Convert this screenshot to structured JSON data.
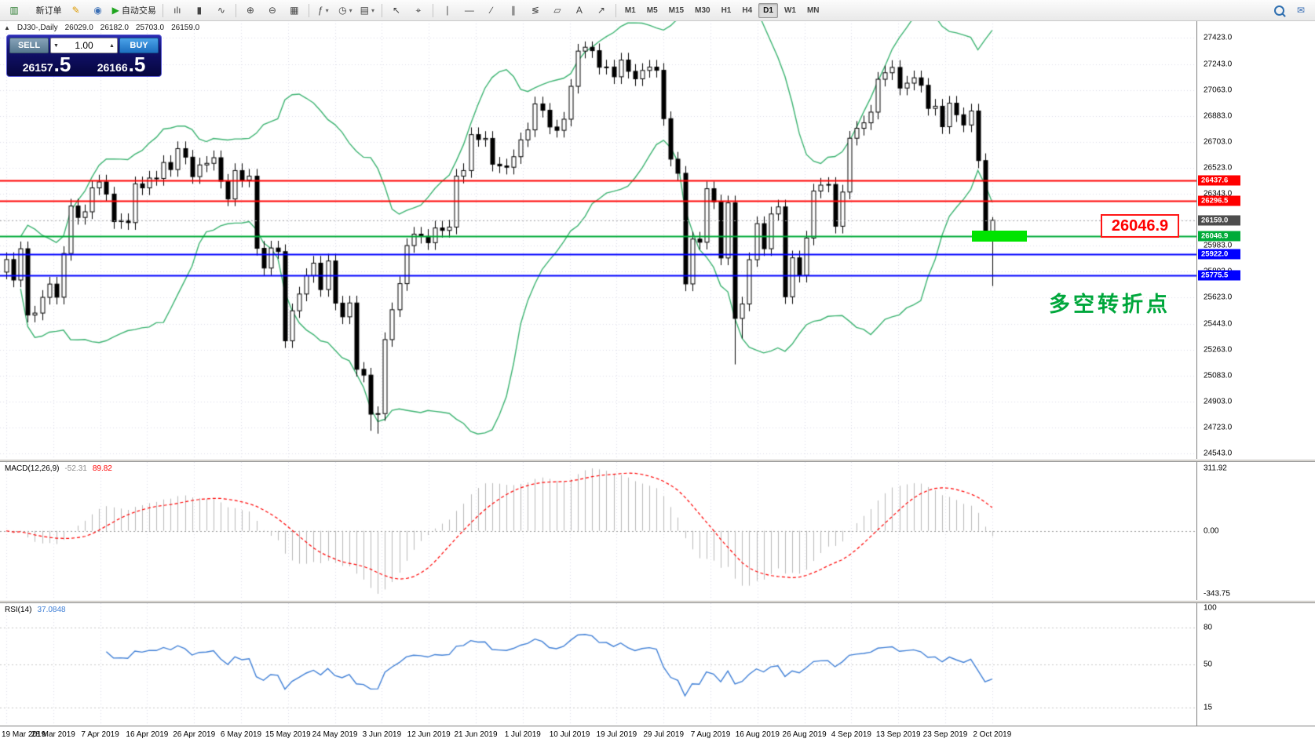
{
  "toolbar": {
    "groups": [
      {
        "items": [
          {
            "name": "chart-window-icon-button",
            "glyph": "▥",
            "color": "#2e7d32"
          },
          {
            "name": "new-order-button",
            "glyph": "▯",
            "color": "#f2f2f2",
            "label": "新订单"
          },
          {
            "name": "metaeditor-button",
            "glyph": "✎",
            "color": "#dd9a00"
          },
          {
            "name": "market-watch-button",
            "glyph": "◉",
            "color": "#3b6fb5"
          },
          {
            "name": "autotrading-button",
            "glyph": "▶",
            "color": "#1fa51f",
            "label": "自动交易"
          }
        ]
      },
      {
        "items": [
          {
            "name": "bar-chart-button",
            "glyph": "ılı"
          },
          {
            "name": "candlestick-chart-button",
            "glyph": "▮"
          },
          {
            "name": "line-chart-button",
            "glyph": "∿"
          }
        ]
      },
      {
        "items": [
          {
            "name": "zoom-in-button",
            "glyph": "⊕"
          },
          {
            "name": "zoom-out-button",
            "glyph": "⊖"
          },
          {
            "name": "tile-windows-button",
            "glyph": "▦"
          }
        ]
      },
      {
        "items": [
          {
            "name": "indicators-combo",
            "glyph": "ƒ",
            "dropdown": true
          },
          {
            "name": "periods-combo",
            "glyph": "◷",
            "dropdown": true
          },
          {
            "name": "templates-combo",
            "glyph": "▤",
            "dropdown": true
          }
        ]
      },
      {
        "items": [
          {
            "name": "cursor-button",
            "glyph": "↖"
          },
          {
            "name": "crosshair-button",
            "glyph": "⌖"
          }
        ]
      },
      {
        "items": [
          {
            "name": "vertical-line-button",
            "glyph": "∣"
          },
          {
            "name": "horizontal-line-button",
            "glyph": "―"
          },
          {
            "name": "trendline-button",
            "glyph": "∕"
          },
          {
            "name": "channel-button",
            "glyph": "∥"
          },
          {
            "name": "fibonacci-button",
            "glyph": "≶"
          },
          {
            "name": "shapes-button",
            "glyph": "▱"
          },
          {
            "name": "text-button",
            "glyph": "A"
          },
          {
            "name": "arrow-button",
            "glyph": "↗"
          }
        ]
      }
    ],
    "timeframes": [
      {
        "label": "M1"
      },
      {
        "label": "M5"
      },
      {
        "label": "M15"
      },
      {
        "label": "M30"
      },
      {
        "label": "H1"
      },
      {
        "label": "H4"
      },
      {
        "label": "D1",
        "active": true
      },
      {
        "label": "W1"
      },
      {
        "label": "MN"
      }
    ],
    "right_items": [
      {
        "name": "search-button",
        "css": "magnifier"
      },
      {
        "name": "message-button",
        "glyph": "✉"
      }
    ]
  },
  "chart": {
    "title": "DJ30-,Daily"
  },
  "one_click": {
    "sell_label": "SELL",
    "buy_label": "BUY",
    "volume": "1.00",
    "sell_price_base": "26157",
    "sell_price_frac": ".5",
    "buy_price_base": "26166",
    "buy_price_frac": ".5"
  },
  "price_axis": {
    "ticks": [
      "27423.0",
      "27243.0",
      "27063.0",
      "26883.0",
      "26703.0",
      "26523.0",
      "26343.0",
      "26163.0",
      "25983.0",
      "25803.0",
      "25623.0",
      "25443.0",
      "25263.0",
      "25083.0",
      "24903.0",
      "24723.0",
      "24543.0"
    ]
  },
  "lines": [
    {
      "name": "resistance-line-1",
      "label": "26437.6",
      "price": 26437.6,
      "color": "#ff0000",
      "width": 2
    },
    {
      "name": "resistance-line-2",
      "label": "26296.5",
      "price": 26296.5,
      "color": "#ff0000",
      "width": 2
    },
    {
      "name": "last-price-line",
      "label": "26159.0",
      "price": 26159.0,
      "color": "#aaaaaa",
      "style": "dot",
      "width": 1,
      "tag_bg": "#4d4d4d"
    },
    {
      "name": "support-line-green",
      "label": "26046.9",
      "price": 26046.9,
      "color": "#00ab38",
      "width": 2
    },
    {
      "name": "support-line-blue-1",
      "label": "25922.0",
      "price": 25922.0,
      "color": "#0000ff",
      "width": 2
    },
    {
      "name": "support-line-blue-2",
      "label": "25775.5",
      "price": 25775.5,
      "color": "#0000ff",
      "width": 2
    }
  ],
  "annotations": {
    "callout_price": "26046.9",
    "cn_text": "多空转折点",
    "highlight_color": "#00e400"
  },
  "macd": {
    "label": "MACD(12,26,9)",
    "value_main": "-52.31",
    "value_signal": "89.82",
    "axis": [
      "311.92",
      "0.00",
      "-343.75"
    ]
  },
  "rsi": {
    "label": "RSI(14)",
    "value": "37.0848",
    "axis": [
      100,
      80,
      50,
      15
    ],
    "levels": [
      80,
      50,
      15
    ]
  },
  "time_axis": {
    "labels": [
      "19 Mar 2019",
      "28 Mar 2019",
      "7 Apr 2019",
      "16 Apr 2019",
      "26 Apr 2019",
      "6 May 2019",
      "15 May 2019",
      "24 May 2019",
      "3 Jun 2019",
      "12 Jun 2019",
      "21 Jun 2019",
      "1 Jul 2019",
      "10 Jul 2019",
      "19 Jul 2019",
      "29 Jul 2019",
      "7 Aug 2019",
      "16 Aug 2019",
      "26 Aug 2019",
      "4 Sep 2019",
      "13 Sep 2019",
      "23 Sep 2019",
      "2 Oct 2019"
    ]
  },
  "colors": {
    "grid": "#dcdce8",
    "bollinger": "#3cb371",
    "candle_border": "#000000",
    "candle_up": "#ffffff",
    "candle_down": "#000000",
    "macd_histogram": "#b8b8b8",
    "macd_signal": "#ff0000",
    "macd_zero": "#999999",
    "rsi_line": "#3f7fd6",
    "rsi_level": "#c8c8c8"
  },
  "chart_data": {
    "type": "candlestick",
    "symbol": "DJ30",
    "timeframe": "Daily",
    "ohlc_display": {
      "open": "26029.0",
      "high": "26182.0",
      "low": "25703.0",
      "close": "26159.0"
    },
    "indicators": [
      "Bollinger Bands (green)",
      "MACD(12,26,9)",
      "RSI(14)"
    ],
    "ylim": [
      24505,
      27545
    ],
    "candles": [
      [
        25800,
        25937,
        25750,
        25887
      ],
      [
        25887,
        25937,
        25695,
        25745
      ],
      [
        25745,
        26012,
        25695,
        25962
      ],
      [
        25962,
        26012,
        25452,
        25502
      ],
      [
        25502,
        25566,
        25452,
        25516
      ],
      [
        25516,
        25675,
        25466,
        25625
      ],
      [
        25625,
        25767,
        25575,
        25717
      ],
      [
        25717,
        25767,
        25576,
        25626
      ],
      [
        25626,
        25979,
        25576,
        25929
      ],
      [
        25929,
        26308,
        25879,
        26258
      ],
      [
        26258,
        26308,
        26129,
        26179
      ],
      [
        26179,
        26268,
        26129,
        26218
      ],
      [
        26218,
        26434,
        26168,
        26384
      ],
      [
        26384,
        26475,
        26334,
        26425
      ],
      [
        26425,
        26475,
        26291,
        26341
      ],
      [
        26341,
        26391,
        26100,
        26150
      ],
      [
        26150,
        26207,
        26100,
        26157
      ],
      [
        26157,
        26207,
        26093,
        26143
      ],
      [
        26143,
        26462,
        26093,
        26412
      ],
      [
        26412,
        26462,
        26334,
        26384
      ],
      [
        26384,
        26502,
        26334,
        26452
      ],
      [
        26452,
        26502,
        26399,
        26449
      ],
      [
        26449,
        26610,
        26399,
        26560
      ],
      [
        26560,
        26610,
        26461,
        26511
      ],
      [
        26511,
        26706,
        26461,
        26656
      ],
      [
        26656,
        26706,
        26547,
        26597
      ],
      [
        26597,
        26647,
        26412,
        26462
      ],
      [
        26462,
        26593,
        26412,
        26543
      ],
      [
        26543,
        26604,
        26493,
        26554
      ],
      [
        26554,
        26643,
        26504,
        26593
      ],
      [
        26593,
        26643,
        26380,
        26430
      ],
      [
        26430,
        26480,
        26257,
        26307
      ],
      [
        26307,
        26554,
        26257,
        26504
      ],
      [
        26504,
        26554,
        26388,
        26438
      ],
      [
        26438,
        26515,
        26388,
        26465
      ],
      [
        26465,
        26515,
        25915,
        25965
      ],
      [
        25965,
        26015,
        25778,
        25828
      ],
      [
        25828,
        26017,
        25778,
        25967
      ],
      [
        25967,
        26017,
        25892,
        25942
      ],
      [
        25942,
        25992,
        25274,
        25324
      ],
      [
        25324,
        25582,
        25274,
        25532
      ],
      [
        25532,
        25698,
        25482,
        25648
      ],
      [
        25648,
        25826,
        25598,
        25776
      ],
      [
        25776,
        25912,
        25726,
        25862
      ],
      [
        25862,
        25912,
        25629,
        25679
      ],
      [
        25679,
        25927,
        25629,
        25877
      ],
      [
        25877,
        25927,
        25535,
        25585
      ],
      [
        25585,
        25635,
        25440,
        25490
      ],
      [
        25490,
        25636,
        25440,
        25586
      ],
      [
        25586,
        25636,
        25076,
        25126
      ],
      [
        25126,
        25176,
        25036,
        25086
      ],
      [
        25086,
        25136,
        24700,
        24815
      ],
      [
        24815,
        24869,
        24680,
        24819
      ],
      [
        24819,
        25382,
        24769,
        25332
      ],
      [
        25332,
        25589,
        25282,
        25539
      ],
      [
        25539,
        25770,
        25489,
        25720
      ],
      [
        25720,
        26034,
        25670,
        25984
      ],
      [
        25984,
        26113,
        25934,
        26063
      ],
      [
        26063,
        26113,
        25998,
        26048
      ],
      [
        26048,
        26098,
        25954,
        26004
      ],
      [
        26004,
        26156,
        25954,
        26106
      ],
      [
        26106,
        26156,
        26039,
        26089
      ],
      [
        26089,
        26162,
        26039,
        26112
      ],
      [
        26112,
        26515,
        26062,
        26465
      ],
      [
        26465,
        26554,
        26415,
        26504
      ],
      [
        26504,
        26803,
        26454,
        26753
      ],
      [
        26753,
        26803,
        26669,
        26719
      ],
      [
        26719,
        26777,
        26669,
        26727
      ],
      [
        26727,
        26777,
        26498,
        26548
      ],
      [
        26548,
        26598,
        26486,
        26536
      ],
      [
        26536,
        26586,
        26477,
        26527
      ],
      [
        26527,
        26650,
        26477,
        26600
      ],
      [
        26600,
        26767,
        26550,
        26717
      ],
      [
        26717,
        26836,
        26667,
        26786
      ],
      [
        26786,
        27016,
        26736,
        26966
      ],
      [
        26966,
        27016,
        26872,
        26922
      ],
      [
        26922,
        26972,
        26756,
        26806
      ],
      [
        26806,
        26856,
        26733,
        26783
      ],
      [
        26783,
        26910,
        26733,
        26860
      ],
      [
        26860,
        27138,
        26810,
        27088
      ],
      [
        27088,
        27382,
        27038,
        27332
      ],
      [
        27332,
        27399,
        27282,
        27359
      ],
      [
        27359,
        27399,
        27285,
        27335
      ],
      [
        27335,
        27385,
        27170,
        27220
      ],
      [
        27220,
        27272,
        27170,
        27222
      ],
      [
        27222,
        27272,
        27104,
        27154
      ],
      [
        27154,
        27320,
        27104,
        27270
      ],
      [
        27270,
        27320,
        27142,
        27192
      ],
      [
        27192,
        27242,
        27090,
        27140
      ],
      [
        27140,
        27248,
        27090,
        27198
      ],
      [
        27198,
        27271,
        27148,
        27221
      ],
      [
        27221,
        27271,
        27149,
        27199
      ],
      [
        27199,
        27249,
        26814,
        26864
      ],
      [
        26864,
        26914,
        26533,
        26583
      ],
      [
        26583,
        26633,
        26435,
        26485
      ],
      [
        26485,
        26535,
        25668,
        25718
      ],
      [
        25718,
        26079,
        25668,
        26029
      ],
      [
        26029,
        26079,
        25957,
        26007
      ],
      [
        26007,
        26428,
        25957,
        26378
      ],
      [
        26378,
        26428,
        26237,
        26287
      ],
      [
        26287,
        26337,
        25848,
        25898
      ],
      [
        25898,
        26330,
        25848,
        26280
      ],
      [
        26280,
        26330,
        25160,
        25479
      ],
      [
        25479,
        25629,
        25340,
        25579
      ],
      [
        25579,
        25936,
        25529,
        25886
      ],
      [
        25886,
        26186,
        25836,
        26136
      ],
      [
        26136,
        26186,
        25912,
        25962
      ],
      [
        25962,
        26253,
        25912,
        26203
      ],
      [
        26203,
        26302,
        26153,
        26252
      ],
      [
        26252,
        26302,
        25579,
        25629
      ],
      [
        25629,
        25949,
        25579,
        25899
      ],
      [
        25899,
        25949,
        25728,
        25778
      ],
      [
        25778,
        26086,
        25728,
        26036
      ],
      [
        26036,
        26412,
        25986,
        26362
      ],
      [
        26362,
        26453,
        26312,
        26403
      ],
      [
        26403,
        26458,
        26353,
        26408
      ],
      [
        26408,
        26458,
        26068,
        26118
      ],
      [
        26118,
        26405,
        26068,
        26355
      ],
      [
        26355,
        26778,
        26305,
        26728
      ],
      [
        26728,
        26847,
        26678,
        26797
      ],
      [
        26797,
        26885,
        26747,
        26835
      ],
      [
        26835,
        26959,
        26785,
        26909
      ],
      [
        26909,
        27187,
        26859,
        27137
      ],
      [
        27137,
        27232,
        27087,
        27182
      ],
      [
        27182,
        27269,
        27132,
        27219
      ],
      [
        27219,
        27269,
        27026,
        27076
      ],
      [
        27076,
        27160,
        27026,
        27110
      ],
      [
        27110,
        27197,
        27060,
        27147
      ],
      [
        27147,
        27197,
        27045,
        27095
      ],
      [
        27095,
        27145,
        26885,
        26935
      ],
      [
        26935,
        27000,
        26885,
        26950
      ],
      [
        26950,
        27000,
        26758,
        26808
      ],
      [
        26808,
        27021,
        26758,
        26971
      ],
      [
        26971,
        27021,
        26841,
        26891
      ],
      [
        26891,
        26941,
        26770,
        26820
      ],
      [
        26820,
        26967,
        26770,
        26917
      ],
      [
        26917,
        26967,
        26520,
        26573
      ],
      [
        26573,
        26623,
        26020,
        26078
      ],
      [
        26029,
        26182,
        25703,
        26159
      ]
    ]
  }
}
